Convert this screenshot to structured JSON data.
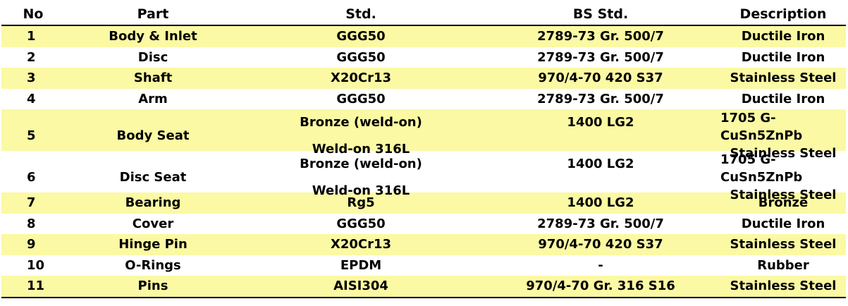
{
  "header": {
    "no": "No",
    "part": "Part",
    "std": "Std.",
    "bs_std": "BS Std.",
    "description": "Description"
  },
  "rows": [
    {
      "no": "1",
      "part": "Body & Inlet",
      "std": "GGG50",
      "bs_std": "2789-73 Gr. 500/7",
      "description": "Ductile Iron"
    },
    {
      "no": "2",
      "part": "Disc",
      "std": "GGG50",
      "bs_std": "2789-73 Gr. 500/7",
      "description": "Ductile Iron"
    },
    {
      "no": "3",
      "part": "Shaft",
      "std": "X20Cr13",
      "bs_std": "970/4-70 420 S37",
      "description": "Stainless Steel"
    },
    {
      "no": "4",
      "part": "Arm",
      "std": "GGG50",
      "bs_std": "2789-73 Gr. 500/7",
      "description": "Ductile Iron"
    },
    {
      "no": "5",
      "part": "Body Seat",
      "std": [
        "Bronze (weld-on)",
        "Weld-on 316L"
      ],
      "bs_std": [
        "1400 LG2",
        ""
      ],
      "description": [
        "1705 G-CuSn5ZnPb",
        "Stainless Steel"
      ]
    },
    {
      "no": "6",
      "part": "Disc Seat",
      "std": [
        "Bronze (weld-on)",
        "Weld-on 316L"
      ],
      "bs_std": [
        "1400 LG2",
        ""
      ],
      "description": [
        "1705 G-CuSn5ZnPb",
        "Stainless Steel"
      ]
    },
    {
      "no": "7",
      "part": "Bearing",
      "std": "Rg5",
      "bs_std": "1400 LG2",
      "description": "Bronze"
    },
    {
      "no": "8",
      "part": "Cover",
      "std": "GGG50",
      "bs_std": "2789-73 Gr. 500/7",
      "description": "Ductile Iron"
    },
    {
      "no": "9",
      "part": "Hinge Pin",
      "std": "X20Cr13",
      "bs_std": "970/4-70 420 S37",
      "description": "Stainless Steel"
    },
    {
      "no": "10",
      "part": "O-Rings",
      "std": "EPDM",
      "bs_std": "-",
      "description": "Rubber"
    },
    {
      "no": "11",
      "part": "Pins",
      "std": "AISI304",
      "bs_std": "970/4-70 Gr. 316 S16",
      "description": "Stainless Steel"
    }
  ],
  "colors": {
    "highlight": "#fbf9a3",
    "rule": "#000000"
  }
}
